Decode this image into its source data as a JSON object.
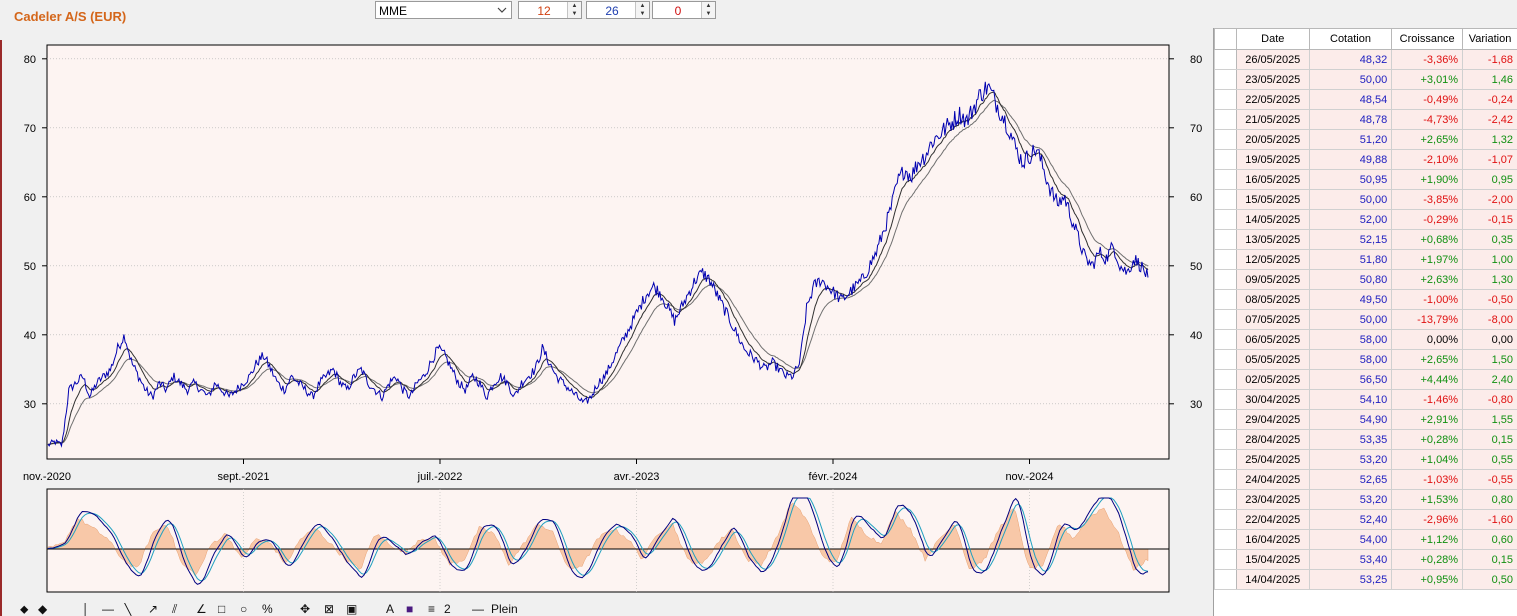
{
  "title": "Cadeler A/S  (EUR)",
  "controls": {
    "indicator": "MME",
    "period1": "12",
    "period2": "26",
    "period3": "0"
  },
  "colors": {
    "price": "#0000b0",
    "ma_short": "#303030",
    "ma_long": "#707070",
    "plot_bg": "#fdf4f2",
    "osc_fill": "#f8c8a8",
    "osc_line1": "#000080",
    "osc_line2": "#20a0c0",
    "title": "#d4661a"
  },
  "chart_data": [
    {
      "type": "line",
      "xlabels": [
        "nov.-2020",
        "sept.-2021",
        "juil.-2022",
        "avr.-2023",
        "févr.-2024",
        "nov.-2024"
      ],
      "ylim": [
        22,
        82
      ],
      "yticks": [
        "30",
        "40",
        "50",
        "60",
        "70",
        "80"
      ],
      "series": [
        {
          "values": [
            24,
            24.5,
            24,
            32,
            33,
            34,
            31,
            33,
            34,
            35,
            38,
            40,
            36,
            34,
            32,
            31,
            33,
            32,
            34,
            33,
            32,
            33,
            32,
            31,
            33,
            32,
            31,
            32,
            33,
            34,
            36,
            37,
            35,
            33,
            32,
            34,
            33,
            32,
            31,
            33,
            34,
            35,
            33,
            32,
            34,
            35,
            33,
            32,
            31,
            33,
            34,
            32,
            31,
            33,
            34,
            36,
            38,
            37,
            35,
            33,
            32,
            34,
            33,
            31,
            33,
            34,
            33,
            31,
            33,
            34,
            35,
            38,
            36,
            34,
            33,
            32,
            31,
            30,
            31,
            33,
            34,
            36,
            38,
            40,
            42,
            44,
            46,
            47,
            46,
            44,
            42,
            44,
            46,
            48,
            49,
            48,
            46,
            44,
            42,
            40,
            38,
            37,
            36,
            35,
            36,
            35,
            34,
            34,
            36,
            44,
            47,
            48,
            47,
            46,
            45,
            46,
            47,
            48,
            50,
            52,
            55,
            58,
            62,
            64,
            63,
            65,
            66,
            68,
            69,
            70,
            71,
            72,
            71,
            73,
            75,
            76,
            74,
            72,
            70,
            67,
            65,
            66,
            67,
            64,
            61,
            59,
            60,
            57,
            54,
            51,
            50,
            52,
            51,
            53,
            50,
            49,
            51,
            50,
            48.3
          ]
        }
      ]
    },
    {
      "type": "area",
      "ylim": [
        -1,
        1
      ],
      "series": [
        {
          "values": [
            0,
            0.1,
            0.6,
            0.4,
            0.2,
            -0.2,
            -0.4,
            0.3,
            0.5,
            -0.3,
            -0.5,
            0.1,
            0.3,
            -0.2,
            0.2,
            0.1,
            -0.3,
            0.2,
            0.4,
            0.1,
            -0.2,
            -0.4,
            0.3,
            0.1,
            -0.1,
            0.2,
            0.2,
            -0.3,
            -0.2,
            0.4,
            0.3,
            -0.3,
            0.1,
            0.5,
            0.3,
            -0.4,
            -0.3,
            0.2,
            0.4,
            0.2,
            -0.2,
            0.3,
            0.5,
            -0.2,
            -0.3,
            0.1,
            0.4,
            -0.2,
            -0.3,
            0.2,
            0.9,
            0.6,
            -0.1,
            -0.3,
            0.6,
            0.3,
            0.1,
            0.7,
            0.4,
            -0.2,
            0.2,
            0.5,
            -0.4,
            -0.2,
            0.4,
            0.8,
            -0.4,
            -0.3,
            0.5,
            0.2,
            0.6,
            0.8,
            0.3,
            -0.4,
            -0.2
          ]
        }
      ]
    }
  ],
  "table": {
    "headers": [
      "Date",
      "Cotation",
      "Croissance",
      "Variation"
    ],
    "rows": [
      [
        "26/05/2025",
        "48,32",
        "-3,36%",
        "-1,68"
      ],
      [
        "23/05/2025",
        "50,00",
        "+3,01%",
        "1,46"
      ],
      [
        "22/05/2025",
        "48,54",
        "-0,49%",
        "-0,24"
      ],
      [
        "21/05/2025",
        "48,78",
        "-4,73%",
        "-2,42"
      ],
      [
        "20/05/2025",
        "51,20",
        "+2,65%",
        "1,32"
      ],
      [
        "19/05/2025",
        "49,88",
        "-2,10%",
        "-1,07"
      ],
      [
        "16/05/2025",
        "50,95",
        "+1,90%",
        "0,95"
      ],
      [
        "15/05/2025",
        "50,00",
        "-3,85%",
        "-2,00"
      ],
      [
        "14/05/2025",
        "52,00",
        "-0,29%",
        "-0,15"
      ],
      [
        "13/05/2025",
        "52,15",
        "+0,68%",
        "0,35"
      ],
      [
        "12/05/2025",
        "51,80",
        "+1,97%",
        "1,00"
      ],
      [
        "09/05/2025",
        "50,80",
        "+2,63%",
        "1,30"
      ],
      [
        "08/05/2025",
        "49,50",
        "-1,00%",
        "-0,50"
      ],
      [
        "07/05/2025",
        "50,00",
        "-13,79%",
        "-8,00"
      ],
      [
        "06/05/2025",
        "58,00",
        "0,00%",
        "0,00"
      ],
      [
        "05/05/2025",
        "58,00",
        "+2,65%",
        "1,50"
      ],
      [
        "02/05/2025",
        "56,50",
        "+4,44%",
        "2,40"
      ],
      [
        "30/04/2025",
        "54,10",
        "-1,46%",
        "-0,80"
      ],
      [
        "29/04/2025",
        "54,90",
        "+2,91%",
        "1,55"
      ],
      [
        "28/04/2025",
        "53,35",
        "+0,28%",
        "0,15"
      ],
      [
        "25/04/2025",
        "53,20",
        "+1,04%",
        "0,55"
      ],
      [
        "24/04/2025",
        "52,65",
        "-1,03%",
        "-0,55"
      ],
      [
        "23/04/2025",
        "53,20",
        "+1,53%",
        "0,80"
      ],
      [
        "22/04/2025",
        "52,40",
        "-2,96%",
        "-1,60"
      ],
      [
        "16/04/2025",
        "54,00",
        "+1,12%",
        "0,60"
      ],
      [
        "15/04/2025",
        "53,40",
        "+0,28%",
        "0,15"
      ],
      [
        "14/04/2025",
        "53,25",
        "+0,95%",
        "0,50"
      ]
    ]
  },
  "toolbar": {
    "line_style": "Plein",
    "width_value": "2"
  }
}
